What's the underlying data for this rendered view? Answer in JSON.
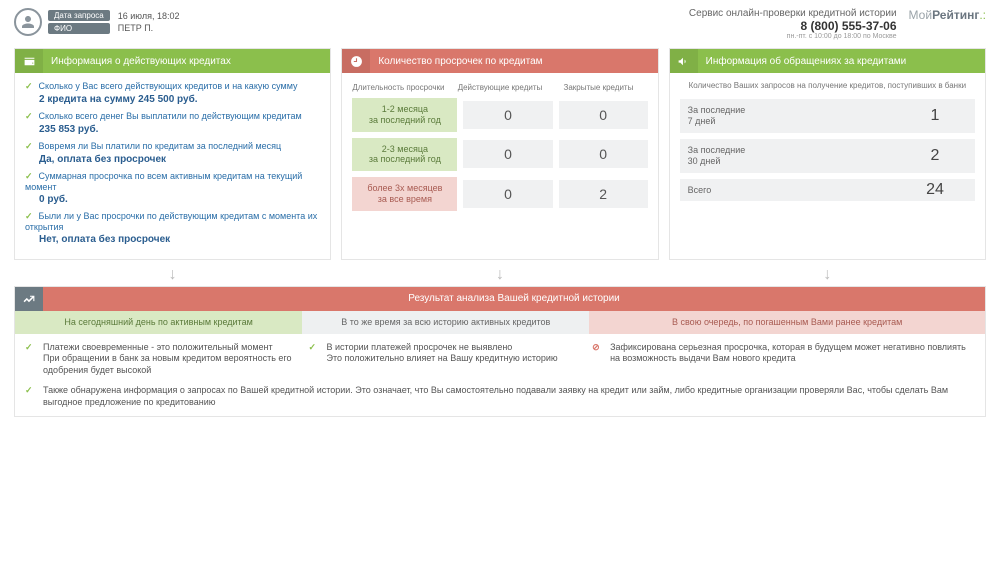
{
  "header": {
    "date_tag": "Дата запроса",
    "name_tag": "ФИО",
    "date": "16 июля, 18:02",
    "name": "ПЕТР П.",
    "service": "Сервис онлайн-проверки кредитной истории",
    "phone": "8 (800) 555-37-06",
    "hours": "пн.-пт. с 10:00 до 18:00 по Москве",
    "logo_pre": "Мой",
    "logo_bold": "Рейтинг"
  },
  "panel1": {
    "title": "Информация о действующих кредитах",
    "q1": "Сколько у Вас всего действующих кредитов и на какую сумму",
    "a1": "2 кредита на сумму 245 500 руб.",
    "q2": "Сколько всего денег Вы выплатили по действующим кредитам",
    "a2": "235 853 руб.",
    "q3": "Вовремя ли Вы платили по кредитам за последний месяц",
    "a3": "Да, оплата без просрочек",
    "q4": "Суммарная просрочка по всем активным кредитам на текущий момент",
    "a4": "0 руб.",
    "q5": "Были ли у Вас просрочки по действующим кредитам с момента их открытия",
    "a5": "Нет, оплата без просрочек"
  },
  "panel2": {
    "title": "Количество просрочек по кредитам",
    "th1": "Длительность просрочки",
    "th2": "Действующие кредиты",
    "th3": "Закрытые кредиты",
    "rows": [
      {
        "label": "1-2 месяца за последний год",
        "style": "green",
        "v1": "0",
        "v2": "0"
      },
      {
        "label": "2-3 месяца за последний год",
        "style": "green",
        "v1": "0",
        "v2": "0"
      },
      {
        "label": "более 3х месяцев за все время",
        "style": "red",
        "v1": "0",
        "v2": "2"
      }
    ]
  },
  "panel3": {
    "title": "Информация об обращениях за кредитами",
    "subtitle": "Количество Ваших запросов на получение кредитов, поступивших в банки",
    "rows": [
      {
        "label": "За последние 7 дней",
        "value": "1"
      },
      {
        "label": "За последние 30 дней",
        "value": "2"
      },
      {
        "label": "Всего",
        "value": "24"
      }
    ]
  },
  "result": {
    "title": "Результат анализа Вашей кредитной истории",
    "sub1": "На сегодняшний день по активным кредитам",
    "sub2": "В то же время за всю историю активных кредитов",
    "sub3": "В свою очередь, по погашенным Вами ранее кредитам",
    "c1a": "Платежи своевременные - это положительный момент",
    "c1b": "При обращении в банк за новым кредитом вероятность его одобрения будет высокой",
    "c2a": "В истории платежей просрочек не выявлено",
    "c2b": "Это положительно влияет на Вашу кредитную историю",
    "c3": "Зафиксирована серьезная просрочка, которая в будущем может негативно повлиять на возможность выдачи Вам нового кредита",
    "footer": "Также обнаружена информация о запросах по Вашей кредитной истории. Это означает, что Вы самостоятельно подавали заявку на кредит или займ, либо кредитные организации проверяли Вас, чтобы сделать Вам выгодное предложение по кредитованию"
  },
  "colors": {
    "green": "#8bbf4c",
    "red": "#d9776b",
    "green_light": "#d9e9c3",
    "red_light": "#f3d5d1",
    "gray_light": "#f0f1f2"
  }
}
